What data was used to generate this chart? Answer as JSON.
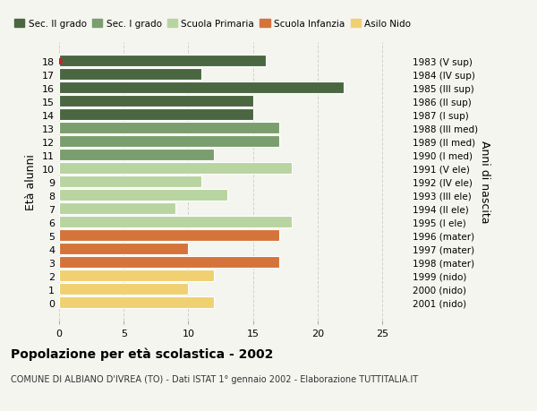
{
  "ages": [
    18,
    17,
    16,
    15,
    14,
    13,
    12,
    11,
    10,
    9,
    8,
    7,
    6,
    5,
    4,
    3,
    2,
    1,
    0
  ],
  "values": [
    16,
    11,
    22,
    15,
    15,
    17,
    17,
    12,
    18,
    11,
    13,
    9,
    18,
    17,
    10,
    17,
    12,
    10,
    12
  ],
  "right_labels": [
    "1983 (V sup)",
    "1984 (IV sup)",
    "1985 (III sup)",
    "1986 (II sup)",
    "1987 (I sup)",
    "1988 (III med)",
    "1989 (II med)",
    "1990 (I med)",
    "1991 (V ele)",
    "1992 (IV ele)",
    "1993 (III ele)",
    "1994 (II ele)",
    "1995 (I ele)",
    "1996 (mater)",
    "1997 (mater)",
    "1998 (mater)",
    "1999 (nido)",
    "2000 (nido)",
    "2001 (nido)"
  ],
  "colors": [
    "#4a6741",
    "#4a6741",
    "#4a6741",
    "#4a6741",
    "#4a6741",
    "#7a9e6e",
    "#7a9e6e",
    "#7a9e6e",
    "#b8d4a0",
    "#b8d4a0",
    "#b8d4a0",
    "#b8d4a0",
    "#b8d4a0",
    "#d4743a",
    "#d4743a",
    "#d4743a",
    "#f0d070",
    "#f0d070",
    "#f0d070"
  ],
  "bar_edge_color": "#ffffff",
  "bar_linewidth": 0.8,
  "bg_color": "#f5f5f0",
  "grid_color": "#cccccc",
  "ylabel_left": "Età alunni",
  "ylabel_right": "Anni di nascita",
  "xlim": [
    0,
    27
  ],
  "xticks": [
    0,
    5,
    10,
    15,
    20,
    25
  ],
  "title_bold": "Popolazione per età scolastica - 2002",
  "subtitle": "COMUNE DI ALBIANO D'IVREA (TO) - Dati ISTAT 1° gennaio 2002 - Elaborazione TUTTITALIA.IT",
  "legend_labels": [
    "Sec. II grado",
    "Sec. I grado",
    "Scuola Primaria",
    "Scuola Infanzia",
    "Asilo Nido"
  ],
  "legend_colors": [
    "#4a6741",
    "#7a9e6e",
    "#b8d4a0",
    "#d4743a",
    "#f0d070"
  ],
  "red_dot_age": 18,
  "figsize": [
    6.0,
    4.6
  ],
  "dpi": 100
}
